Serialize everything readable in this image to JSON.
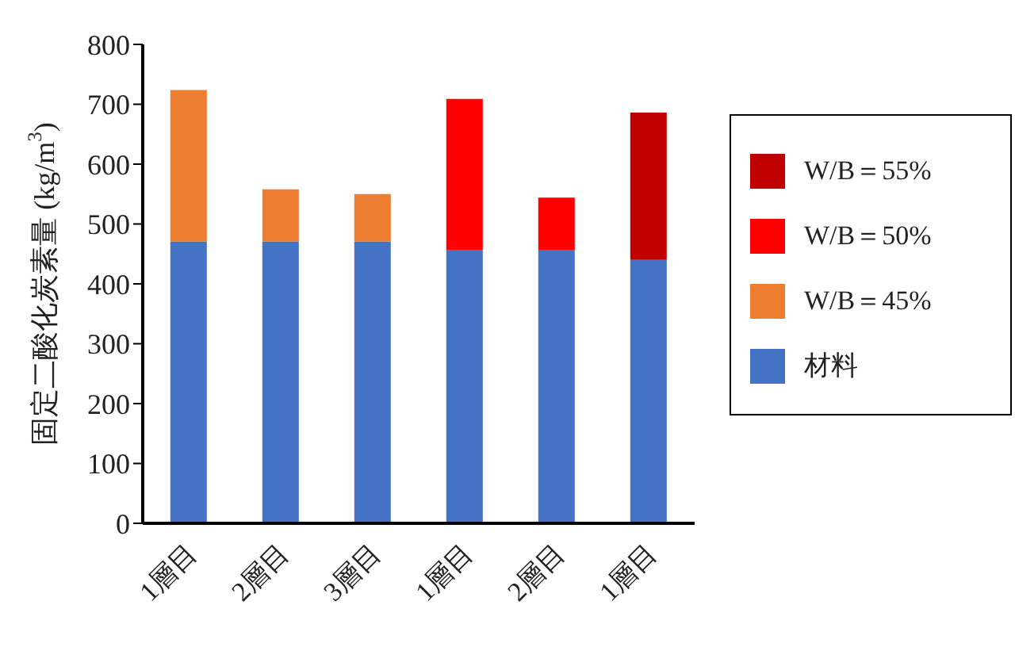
{
  "chart_data": {
    "type": "bar",
    "stacked": true,
    "ylabel": "固定二酸化炭素量 (kg/m$^{3}$)",
    "categories": [
      "1層目",
      "2層目",
      "3層目",
      "1層目",
      "2層目",
      "1層目"
    ],
    "series": [
      {
        "name": "材料",
        "color": "#4472c4",
        "values": [
          471,
          471,
          471,
          456,
          456,
          440
        ]
      },
      {
        "name": "W/B＝45%",
        "color": "#ed7d31",
        "values": [
          253,
          87,
          79,
          null,
          null,
          null
        ]
      },
      {
        "name": "W/B＝50%",
        "color": "#ff0000",
        "values": [
          null,
          null,
          null,
          253,
          88,
          null
        ]
      },
      {
        "name": "W/B＝55%",
        "color": "#c00000",
        "values": [
          null,
          null,
          null,
          null,
          null,
          246
        ]
      }
    ],
    "ylim": [
      0,
      800
    ],
    "yticks": [
      0,
      100,
      200,
      300,
      400,
      500,
      600,
      700,
      800
    ],
    "grid": false,
    "legend": "right"
  }
}
